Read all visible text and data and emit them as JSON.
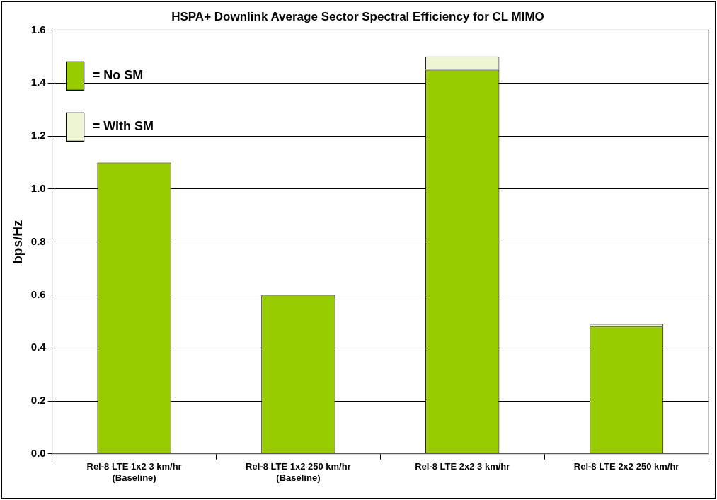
{
  "chart_data": {
    "type": "bar",
    "title": "HSPA+ Downlink Average Sector Spectral Efficiency for CL MIMO",
    "ylabel": "bps/Hz",
    "categories": [
      "Rel-8 LTE 1x2 3 km/hr\n(Baseline)",
      "Rel-8 LTE 1x2 250 km/hr\n(Baseline)",
      "Rel-8 LTE 2x2 3 km/hr",
      "Rel-8 LTE 2x2 250 km/hr"
    ],
    "series": [
      {
        "name": "= No SM",
        "color": "#99cc00",
        "values": [
          1.1,
          0.6,
          1.45,
          0.48
        ]
      },
      {
        "name": "= With SM",
        "color": "#eef6d4",
        "values": [
          0,
          0,
          0.05,
          0.01
        ]
      }
    ],
    "stacked": true,
    "ylim": [
      0,
      1.6
    ],
    "yticks": [
      {
        "value": 0,
        "label": "0.0"
      },
      {
        "value": 0.2,
        "label": "0.2"
      },
      {
        "value": 0.4,
        "label": "0.4"
      },
      {
        "value": 0.6,
        "label": "0.6"
      },
      {
        "value": 0.8,
        "label": "0.8"
      },
      {
        "value": 1,
        "label": "1.0"
      },
      {
        "value": 1.2,
        "label": "1.2"
      },
      {
        "value": 1.4,
        "label": "1.4"
      },
      {
        "value": 1.6,
        "label": "1.6"
      }
    ],
    "grid": "y",
    "legend": "top left"
  }
}
